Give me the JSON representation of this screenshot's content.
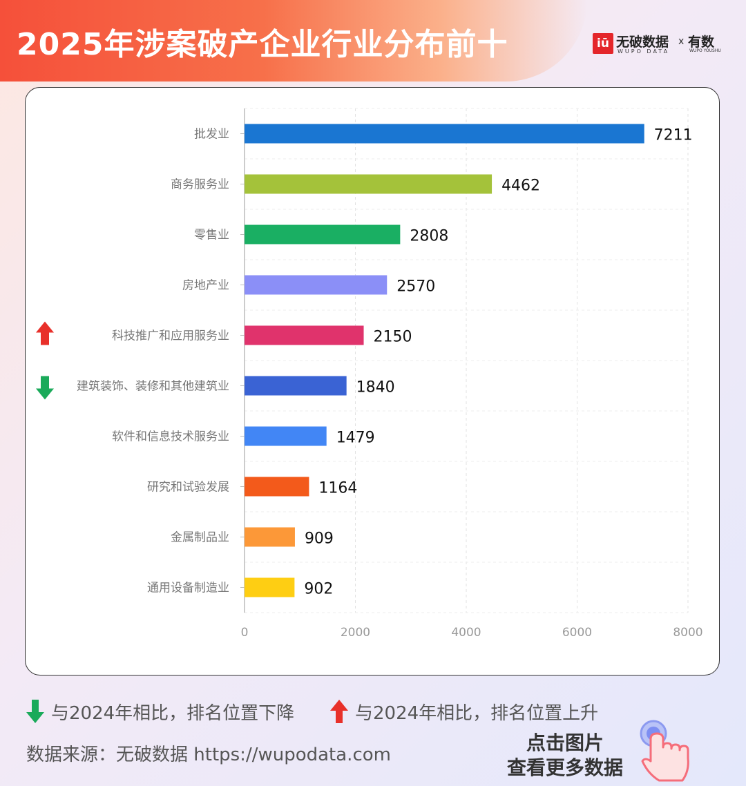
{
  "header": {
    "title": "2025年涉案破产企业行业分布前十",
    "brand_mark": "iū",
    "brand_name": "无破数据",
    "brand_sub": "WUPO DATA",
    "brand_x": "x",
    "brand2_name": "有数",
    "brand2_sub": "WUPO YOUSHU"
  },
  "chart_data": {
    "type": "bar",
    "orientation": "horizontal",
    "categories": [
      "批发业",
      "商务服务业",
      "零售业",
      "房地产业",
      "科技推广和应用服务业",
      "建筑装饰、装修和其他建筑业",
      "软件和信息技术服务业",
      "研究和试验发展",
      "金属制品业",
      "通用设备制造业"
    ],
    "values": [
      7211,
      4462,
      2808,
      2570,
      2150,
      1840,
      1479,
      1164,
      909,
      902
    ],
    "value_labels": [
      "7211",
      "4462",
      "2808",
      "2570",
      "2150",
      "1840",
      "1479",
      "1164",
      "909",
      "902"
    ],
    "colors": [
      "#1a76d2",
      "#a4c23a",
      "#1aaf63",
      "#8b8ff7",
      "#e0336c",
      "#3a63d4",
      "#4286f5",
      "#f35a1b",
      "#fc9838",
      "#fece13"
    ],
    "rank_change": [
      "",
      "",
      "",
      "",
      "up",
      "down",
      "",
      "",
      "",
      ""
    ],
    "xlim": [
      0,
      8000
    ],
    "xticks": [
      "0",
      "2000",
      "4000",
      "6000",
      "8000"
    ],
    "grid": true
  },
  "legend": {
    "down_text": "与2024年相比，排名位置下降",
    "up_text": "与2024年相比，排名位置上升",
    "down_color": "#1aaa5a",
    "up_color": "#e8302a"
  },
  "footer": {
    "source": "数据来源：无破数据 https://wupodata.com",
    "cta_line1": "点击图片",
    "cta_line2": "查看更多数据"
  }
}
